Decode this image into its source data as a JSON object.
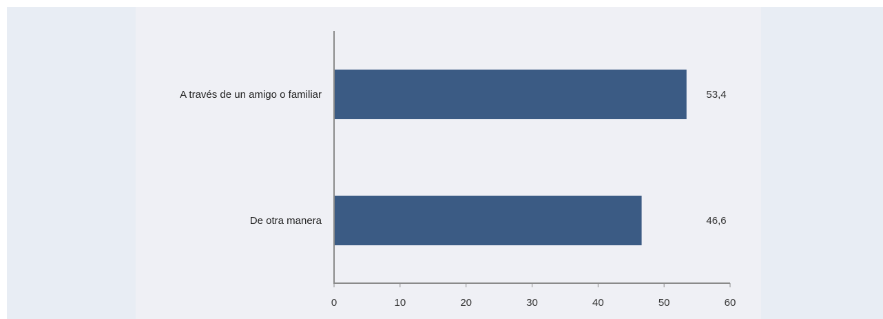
{
  "colors": {
    "bar": "#3b5b84",
    "axis": "#8a8a8a"
  },
  "chart_data": {
    "type": "bar",
    "orientation": "horizontal",
    "categories": [
      "A través de un amigo o familiar",
      "De otra manera"
    ],
    "values": [
      53.4,
      46.6
    ],
    "value_labels": [
      "53,4",
      "46,6"
    ],
    "xticks": [
      0,
      10,
      20,
      30,
      40,
      50,
      60
    ],
    "xlim": [
      0,
      60
    ],
    "title": "",
    "xlabel": "",
    "ylabel": "",
    "grid": false,
    "legend": "none"
  }
}
